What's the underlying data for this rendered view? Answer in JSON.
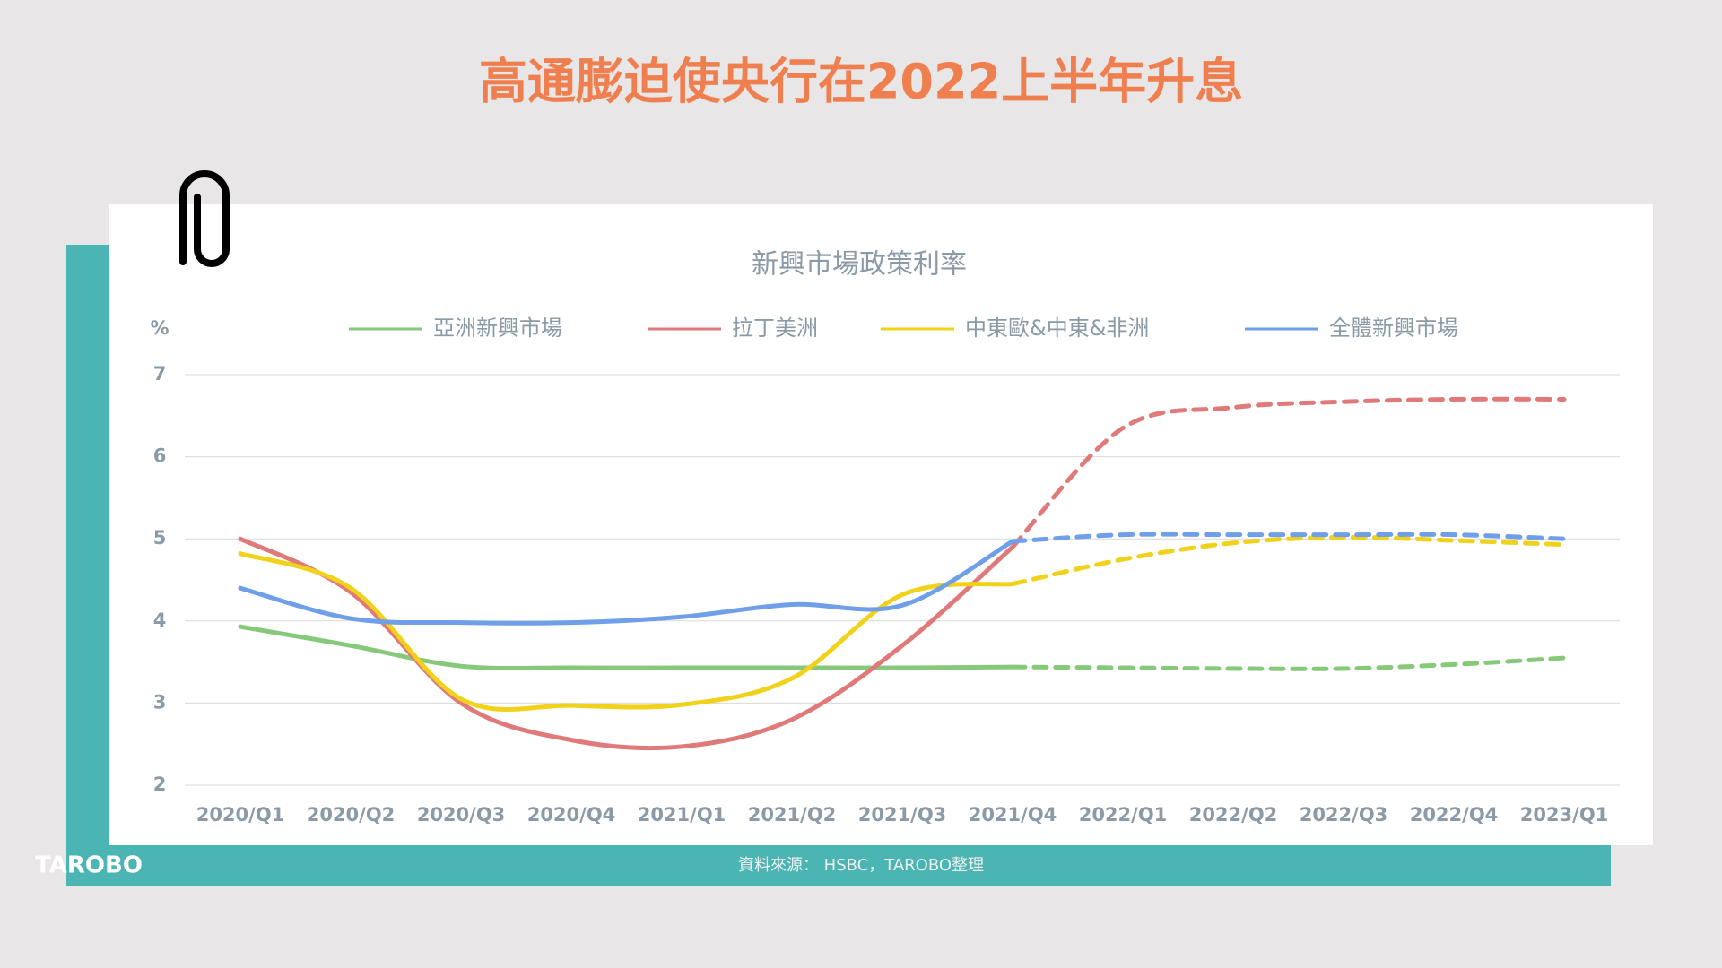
{
  "header": {
    "title": "高通膨迫使央行在2022上半年升息"
  },
  "footer": {
    "logo": "TAROBO",
    "source": "資料來源： HSBC，TAROBO整理"
  },
  "chart_data": {
    "type": "line",
    "title": "新興市場政策利率",
    "y_unit": "%",
    "categories": [
      "2020/Q1",
      "2020/Q2",
      "2020/Q3",
      "2020/Q4",
      "2021/Q1",
      "2021/Q2",
      "2021/Q3",
      "2021/Q4",
      "2022/Q1",
      "2022/Q2",
      "2022/Q3",
      "2022/Q4",
      "2023/Q1"
    ],
    "forecast_from": "2021/Q4",
    "series": [
      {
        "name": "亞洲新興市場",
        "color": "#86c97a",
        "values": [
          3.93,
          3.7,
          3.45,
          3.43,
          3.43,
          3.43,
          3.43,
          3.44,
          3.43,
          3.42,
          3.42,
          3.47,
          3.55
        ]
      },
      {
        "name": "拉丁美洲",
        "color": "#e07a7a",
        "values": [
          5.0,
          4.35,
          3.0,
          2.55,
          2.47,
          2.8,
          3.7,
          4.9,
          6.35,
          6.6,
          6.67,
          6.7,
          6.7
        ]
      },
      {
        "name": "中東歐&中東&非洲",
        "color": "#f1d21a",
        "values": [
          4.82,
          4.4,
          3.05,
          2.97,
          2.98,
          3.3,
          4.32,
          4.45,
          4.75,
          4.95,
          5.02,
          4.98,
          4.93
        ]
      },
      {
        "name": "全體新興市場",
        "color": "#6f9fe8",
        "values": [
          4.4,
          4.03,
          3.98,
          3.98,
          4.05,
          4.2,
          4.19,
          4.97,
          5.05,
          5.05,
          5.05,
          5.05,
          5.0
        ]
      }
    ],
    "ylim": [
      2,
      7
    ],
    "yticks": [
      2,
      3,
      4,
      5,
      6,
      7
    ],
    "grid": true
  }
}
